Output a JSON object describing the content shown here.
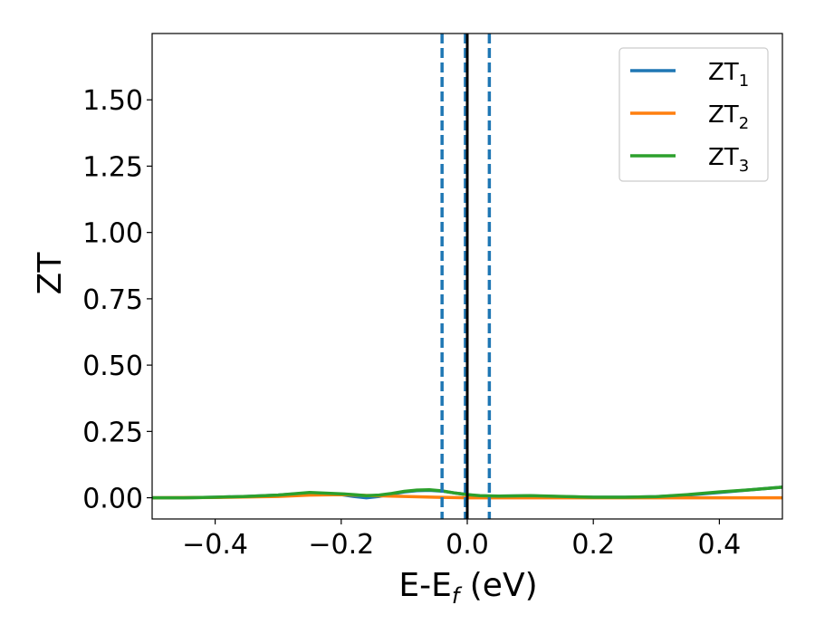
{
  "chart_data": {
    "type": "line",
    "xlabel": "E-E",
    "xlabel_sub": "f",
    "xlabel_unit": " (eV)",
    "ylabel": "ZT",
    "xlim": [
      -0.5,
      0.5
    ],
    "ylim": [
      -0.08,
      1.75
    ],
    "x_ticks": [
      -0.4,
      -0.2,
      0.0,
      0.2,
      0.4
    ],
    "x_tick_labels": [
      "−0.4",
      "−0.2",
      "0.0",
      "0.2",
      "0.4"
    ],
    "y_ticks": [
      0.0,
      0.25,
      0.5,
      0.75,
      1.0,
      1.25,
      1.5
    ],
    "y_tick_labels": [
      "0.00",
      "0.25",
      "0.50",
      "0.75",
      "1.00",
      "1.25",
      "1.50"
    ],
    "grid": false,
    "legend_position": "top-right",
    "series": [
      {
        "name": "ZT",
        "name_sub": "1",
        "color": "#1f77b4",
        "x": [
          -0.5,
          -0.45,
          -0.4,
          -0.35,
          -0.3,
          -0.25,
          -0.2,
          -0.18,
          -0.16,
          -0.14,
          -0.12,
          -0.1,
          -0.08,
          -0.06,
          -0.04,
          -0.02,
          0.0,
          0.02,
          0.05,
          0.1,
          0.15,
          0.2,
          0.25,
          0.3,
          0.35,
          0.4,
          0.45,
          0.5
        ],
        "y": [
          0.0,
          0.0,
          0.002,
          0.005,
          0.01,
          0.018,
          0.012,
          0.005,
          0.0,
          0.005,
          0.014,
          0.022,
          0.027,
          0.028,
          0.025,
          0.018,
          0.012,
          0.006,
          0.006,
          0.007,
          0.004,
          0.002,
          0.002,
          0.004,
          0.01,
          0.02,
          0.03,
          0.04
        ]
      },
      {
        "name": "ZT",
        "name_sub": "2",
        "color": "#ff7f0e",
        "x": [
          -0.5,
          -0.4,
          -0.3,
          -0.25,
          -0.2,
          -0.15,
          -0.1,
          -0.05,
          0.0,
          0.1,
          0.2,
          0.3,
          0.4,
          0.5
        ],
        "y": [
          0.0,
          0.001,
          0.005,
          0.01,
          0.012,
          0.008,
          0.005,
          0.002,
          0.0,
          0.0,
          0.0,
          0.0,
          0.0,
          0.0
        ]
      },
      {
        "name": "ZT",
        "name_sub": "3",
        "color": "#2ca02c",
        "x": [
          -0.5,
          -0.45,
          -0.4,
          -0.35,
          -0.3,
          -0.25,
          -0.2,
          -0.18,
          -0.16,
          -0.14,
          -0.12,
          -0.1,
          -0.08,
          -0.06,
          -0.04,
          -0.02,
          0.0,
          0.02,
          0.05,
          0.1,
          0.15,
          0.2,
          0.25,
          0.3,
          0.35,
          0.4,
          0.45,
          0.5
        ],
        "y": [
          0.0,
          0.0,
          0.002,
          0.005,
          0.01,
          0.02,
          0.015,
          0.012,
          0.008,
          0.01,
          0.016,
          0.024,
          0.029,
          0.03,
          0.026,
          0.018,
          0.012,
          0.008,
          0.006,
          0.008,
          0.005,
          0.002,
          0.002,
          0.004,
          0.012,
          0.022,
          0.03,
          0.04
        ]
      }
    ],
    "vertical_lines": [
      {
        "x": -0.04,
        "color": "#1f77b4",
        "style": "dashed"
      },
      {
        "x": -0.003,
        "color": "#1f77b4",
        "style": "dashed"
      },
      {
        "x": 0.035,
        "color": "#1f77b4",
        "style": "dashed"
      },
      {
        "x": 0.0,
        "color": "#000000",
        "style": "solid"
      }
    ]
  }
}
